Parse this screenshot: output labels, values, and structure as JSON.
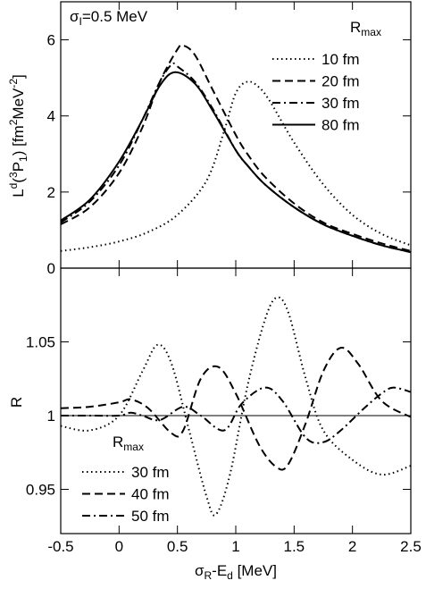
{
  "chart_data": [
    {
      "type": "line",
      "annotation": [
        "σ",
        "I",
        "=0.5 MeV"
      ],
      "ylabel": [
        "L",
        "d",
        "(",
        "3",
        "P",
        "1",
        ") [fm",
        "2",
        "MeV",
        "-2",
        "]"
      ],
      "legend_title": [
        "R",
        "max"
      ],
      "legend": "upper right",
      "ylim": [
        0,
        7
      ],
      "yticks": [
        0,
        2,
        4,
        6
      ],
      "xlim": [
        -0.5,
        2.5
      ],
      "series": [
        {
          "name": "10 fm",
          "color": "#000000",
          "dash": "dotted",
          "x": [
            -0.5,
            -0.25,
            0,
            0.25,
            0.5,
            0.75,
            0.9,
            1,
            1.1,
            1.2,
            1.3,
            1.5,
            1.75,
            2,
            2.25,
            2.5
          ],
          "values": [
            0.45,
            0.55,
            0.7,
            0.95,
            1.4,
            2.3,
            3.6,
            4.6,
            4.9,
            4.75,
            4.35,
            3.3,
            2.2,
            1.4,
            0.9,
            0.6
          ]
        },
        {
          "name": "20 fm",
          "color": "#000000",
          "dash": "dashed",
          "x": [
            -0.5,
            -0.25,
            0,
            0.2,
            0.35,
            0.5,
            0.55,
            0.65,
            0.8,
            1,
            1.1,
            1.25,
            1.5,
            1.75,
            2,
            2.25,
            2.5
          ],
          "values": [
            1.15,
            1.6,
            2.5,
            3.7,
            4.9,
            5.75,
            5.85,
            5.6,
            4.7,
            3.5,
            3.0,
            2.4,
            1.7,
            1.2,
            0.9,
            0.65,
            0.45
          ]
        },
        {
          "name": "30 fm",
          "color": "#000000",
          "dash": "dashdot",
          "x": [
            -0.5,
            -0.25,
            0,
            0.2,
            0.35,
            0.45,
            0.5,
            0.65,
            0.8,
            1,
            1.1,
            1.25,
            1.5,
            1.75,
            2,
            2.25,
            2.5
          ],
          "values": [
            1.2,
            1.75,
            2.7,
            3.9,
            4.9,
            5.35,
            5.3,
            4.9,
            4.2,
            3.1,
            2.7,
            2.2,
            1.6,
            1.15,
            0.85,
            0.6,
            0.42
          ]
        },
        {
          "name": "80 fm",
          "color": "#000000",
          "dash": "solid",
          "x": [
            -0.5,
            -0.25,
            0,
            0.2,
            0.35,
            0.48,
            0.65,
            0.8,
            1,
            1.1,
            1.25,
            1.5,
            1.75,
            2,
            2.25,
            2.5
          ],
          "values": [
            1.25,
            1.8,
            2.8,
            3.9,
            4.8,
            5.15,
            4.85,
            4.15,
            3.1,
            2.7,
            2.2,
            1.6,
            1.15,
            0.85,
            0.6,
            0.42
          ]
        }
      ]
    },
    {
      "type": "line",
      "ylabel": [
        "R"
      ],
      "xlabel": [
        "σ",
        "R",
        "-E",
        "d",
        " [MeV]"
      ],
      "legend_title": [
        "R",
        "max"
      ],
      "legend": "lower left",
      "ylim": [
        0.92,
        1.1
      ],
      "yticks": [
        0.95,
        1,
        1.05
      ],
      "xlim": [
        -0.5,
        2.5
      ],
      "xticks": [
        -0.5,
        0,
        0.5,
        1,
        1.5,
        2,
        2.5
      ],
      "hline": 1,
      "series": [
        {
          "name": "30 fm",
          "color": "#000000",
          "dash": "dotted",
          "x": [
            -0.5,
            -0.25,
            0,
            0.2,
            0.33,
            0.45,
            0.6,
            0.75,
            0.83,
            0.95,
            1.1,
            1.25,
            1.35,
            1.45,
            1.6,
            1.75,
            2,
            2.25,
            2.5
          ],
          "values": [
            0.993,
            0.99,
            1.0,
            1.03,
            1.048,
            1.035,
            0.99,
            0.945,
            0.933,
            0.96,
            1.02,
            1.065,
            1.08,
            1.07,
            1.025,
            0.99,
            0.97,
            0.96,
            0.966
          ]
        },
        {
          "name": "40 fm",
          "color": "#000000",
          "dash": "dashed",
          "x": [
            -0.5,
            -0.25,
            0,
            0.1,
            0.25,
            0.45,
            0.55,
            0.7,
            0.85,
            1,
            1.2,
            1.35,
            1.45,
            1.6,
            1.75,
            1.9,
            2.05,
            2.25,
            2.5
          ],
          "values": [
            1.005,
            1.006,
            1.009,
            1.011,
            1.005,
            0.988,
            0.99,
            1.025,
            1.033,
            1.015,
            0.98,
            0.965,
            0.967,
            0.995,
            1.03,
            1.046,
            1.035,
            1.01,
            0.999
          ]
        },
        {
          "name": "50 fm",
          "color": "#000000",
          "dash": "dashdot",
          "x": [
            -0.5,
            -0.25,
            0,
            0.1,
            0.2,
            0.35,
            0.55,
            0.7,
            0.9,
            1.05,
            1.25,
            1.4,
            1.6,
            1.75,
            1.9,
            2.1,
            2.25,
            2.35,
            2.5
          ],
          "values": [
            1.0,
            1.0,
            1.0,
            1.002,
            1.0,
            0.997,
            1.006,
            1.0,
            0.99,
            1.008,
            1.019,
            1.01,
            0.985,
            0.982,
            0.99,
            1.005,
            1.015,
            1.019,
            1.016
          ]
        }
      ]
    }
  ]
}
